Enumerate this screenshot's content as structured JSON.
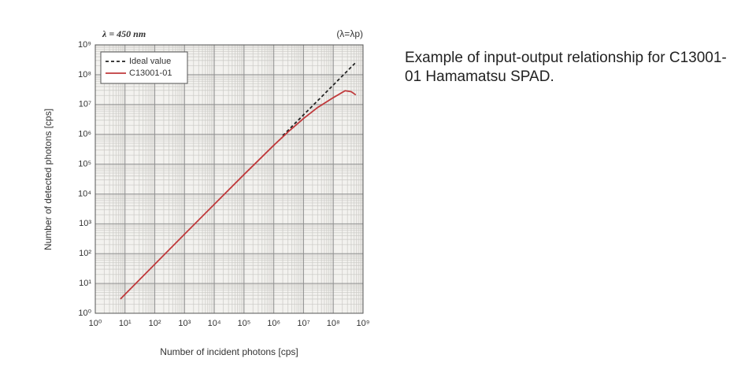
{
  "chart_data": {
    "type": "line",
    "annotations": [
      "λ = 450 nm",
      "(λ=λp)"
    ],
    "caption": "Example of input-output relationship for C13001-01 Hamamatsu SPAD.",
    "xlabel": "Number of incident photons [cps]",
    "ylabel": "Number of detected photons [cps]",
    "xscale": "log",
    "yscale": "log",
    "grid": true,
    "legend": "upper left",
    "xlim": [
      1,
      1000000000
    ],
    "ylim": [
      1,
      1000000000
    ],
    "xticks": [
      {
        "value": 1,
        "label": "10⁰"
      },
      {
        "value": 10,
        "label": "10¹"
      },
      {
        "value": 100,
        "label": "10²"
      },
      {
        "value": 1000,
        "label": "10³"
      },
      {
        "value": 10000,
        "label": "10⁴"
      },
      {
        "value": 100000,
        "label": "10⁵"
      },
      {
        "value": 1000000,
        "label": "10⁶"
      },
      {
        "value": 10000000,
        "label": "10⁷"
      },
      {
        "value": 100000000,
        "label": "10⁸"
      },
      {
        "value": 1000000000,
        "label": "10⁹"
      }
    ],
    "yticks": [
      {
        "value": 1,
        "label": "10⁰"
      },
      {
        "value": 10,
        "label": "10¹"
      },
      {
        "value": 100,
        "label": "10²"
      },
      {
        "value": 1000,
        "label": "10³"
      },
      {
        "value": 10000,
        "label": "10⁴"
      },
      {
        "value": 100000,
        "label": "10⁵"
      },
      {
        "value": 1000000,
        "label": "10⁶"
      },
      {
        "value": 10000000,
        "label": "10⁷"
      },
      {
        "value": 100000000,
        "label": "10⁸"
      },
      {
        "value": 1000000000,
        "label": "10⁹"
      }
    ],
    "series": [
      {
        "name": "Ideal value",
        "color": "#222222",
        "dashed": true,
        "x": [
          2000000,
          600000000
        ],
        "values": [
          900000,
          270000000
        ]
      },
      {
        "name": "C13001-01",
        "color": "#c0393b",
        "dashed": false,
        "x": [
          7,
          1000,
          100000,
          1000000,
          3000000,
          10000000,
          30000000,
          100000000,
          250000000,
          400000000,
          570000000
        ],
        "values": [
          3,
          450,
          45000,
          430000,
          1200000,
          3400000,
          8000000,
          17000000,
          29000000,
          27000000,
          21000000
        ]
      }
    ]
  }
}
